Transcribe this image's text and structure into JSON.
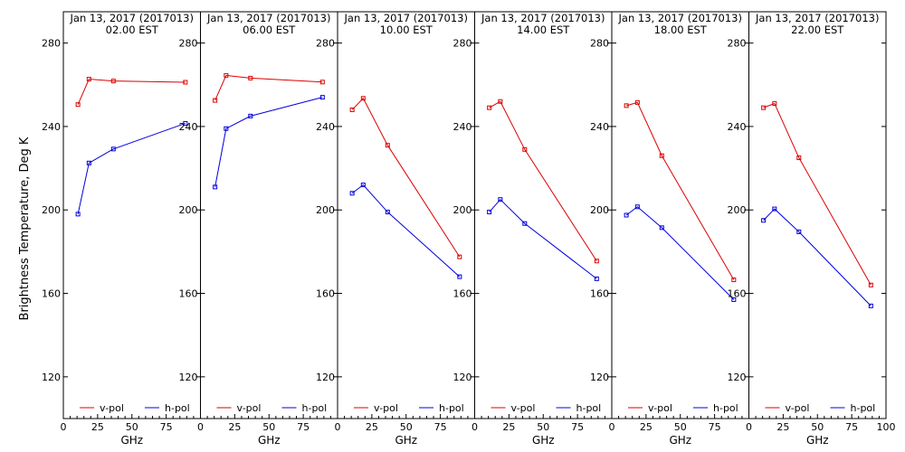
{
  "chart_data": {
    "type": "line",
    "ylabel": "Brightness Temperature, Deg K",
    "ylim": [
      100,
      295
    ],
    "yticks": [
      120,
      160,
      200,
      240,
      280
    ],
    "xlabel": "GHz",
    "xlim": [
      0,
      100
    ],
    "xticks": [
      0,
      25,
      50,
      75
    ],
    "xtick_labels_last_panel": [
      0,
      25,
      50,
      75,
      100
    ],
    "legend": {
      "placement": "bottom",
      "entries": [
        "v-pol",
        "h-pol"
      ]
    },
    "colors": {
      "v-pol": "#dd0000",
      "h-pol": "#0000dd"
    },
    "x": [
      10.65,
      18.7,
      36.5,
      89
    ],
    "panels": [
      {
        "title": "Jan 13, 2017 (2017013)",
        "subtitle": "02.00 EST",
        "series": [
          {
            "name": "v-pol",
            "values": [
              250.5,
              262.7,
              261.8,
              261.2
            ]
          },
          {
            "name": "h-pol",
            "values": [
              198,
              222.5,
              229.2,
              241.5
            ]
          }
        ]
      },
      {
        "title": "Jan 13, 2017 (2017013)",
        "subtitle": "06.00 EST",
        "series": [
          {
            "name": "v-pol",
            "values": [
              252.5,
              264.5,
              263.2,
              261.3
            ]
          },
          {
            "name": "h-pol",
            "values": [
              211,
              239,
              245,
              254
            ]
          }
        ]
      },
      {
        "title": "Jan 13, 2017 (2017013)",
        "subtitle": "10.00 EST",
        "series": [
          {
            "name": "v-pol",
            "values": [
              248,
              253.5,
              231,
              177.5
            ]
          },
          {
            "name": "h-pol",
            "values": [
              208,
              212,
              199,
              168
            ]
          }
        ]
      },
      {
        "title": "Jan 13, 2017 (2017013)",
        "subtitle": "14.00 EST",
        "series": [
          {
            "name": "v-pol",
            "values": [
              249,
              252,
              229,
              175.5
            ]
          },
          {
            "name": "h-pol",
            "values": [
              199,
              205,
              193.5,
              167
            ]
          }
        ]
      },
      {
        "title": "Jan 13, 2017 (2017013)",
        "subtitle": "18.00 EST",
        "series": [
          {
            "name": "v-pol",
            "values": [
              250,
              251.5,
              226,
              166.5
            ]
          },
          {
            "name": "h-pol",
            "values": [
              197.5,
              201.5,
              191.5,
              157
            ]
          }
        ]
      },
      {
        "title": "Jan 13, 2017 (2017013)",
        "subtitle": "22.00 EST",
        "series": [
          {
            "name": "v-pol",
            "values": [
              249,
              251,
              225,
              164
            ]
          },
          {
            "name": "h-pol",
            "values": [
              195,
              200.5,
              189.5,
              154
            ]
          }
        ]
      }
    ]
  }
}
